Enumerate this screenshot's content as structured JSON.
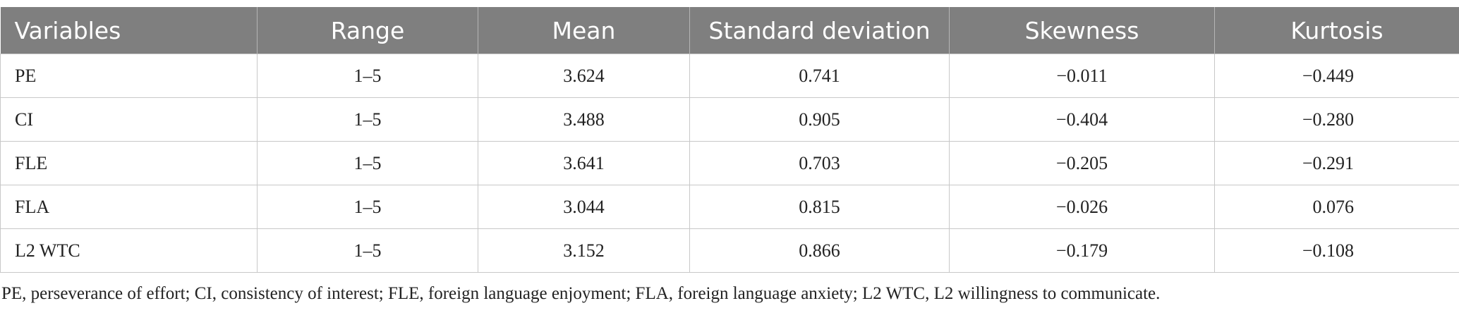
{
  "table": {
    "header": [
      "Variables",
      "Range",
      "Mean",
      "Standard deviation",
      "Skewness",
      "Kurtosis"
    ],
    "rows": [
      [
        "PE",
        "1–5",
        "3.624",
        "0.741",
        "−0.011",
        "−0.449"
      ],
      [
        "CI",
        "1–5",
        "3.488",
        "0.905",
        "−0.404",
        "−0.280"
      ],
      [
        "FLE",
        "1–5",
        "3.641",
        "0.703",
        "−0.205",
        "−0.291"
      ],
      [
        "FLA",
        "1–5",
        "3.044",
        "0.815",
        "−0.026",
        "0.076"
      ],
      [
        "L2 WTC",
        "1–5",
        "3.152",
        "0.866",
        "−0.179",
        "−0.108"
      ]
    ]
  },
  "footnote": "PE, perseverance of effort; CI, consistency of interest; FLE, foreign language enjoyment; FLA, foreign language anxiety; L2 WTC, L2 willingness to communicate."
}
